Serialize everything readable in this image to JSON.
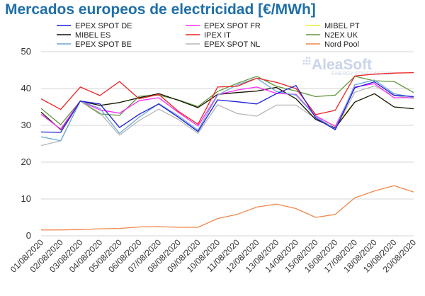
{
  "header": {
    "title": "Mercados europeos de electricidad [€/MWh]"
  },
  "watermark": {
    "brand": "AleaSoft",
    "tagline": "ENERGY FORECASTING",
    "icon": "dot-grid-icon"
  },
  "chart_data": {
    "type": "line",
    "title": "Mercados europeos de electricidad [€/MWh]",
    "xlabel": "",
    "ylabel": "",
    "ylim": [
      0,
      50
    ],
    "yticks": [
      0,
      10,
      20,
      30,
      40,
      50
    ],
    "grid": "horizontal",
    "legend_placement": "top",
    "x": [
      "01/08/2020",
      "02/08/2020",
      "03/08/2020",
      "04/08/2020",
      "05/08/2020",
      "06/08/2020",
      "07/08/2020",
      "08/08/2020",
      "09/08/2020",
      "10/08/2020",
      "11/08/2020",
      "12/08/2020",
      "13/08/2020",
      "14/08/2020",
      "15/08/2020",
      "16/08/2020",
      "17/08/2020",
      "18/08/2020",
      "19/08/2020",
      "20/08/2020"
    ],
    "series": [
      {
        "name": "EPEX SPOT DE",
        "color": "#1f1fd6",
        "values": [
          28.2,
          28.1,
          36.6,
          35.8,
          29.4,
          33.0,
          35.8,
          32.2,
          28.3,
          36.9,
          36.4,
          35.8,
          38.6,
          40.8,
          32.0,
          28.8,
          40.2,
          41.8,
          38.2,
          37.8
        ]
      },
      {
        "name": "MIBEL ES",
        "color": "#111111",
        "values": [
          33.6,
          28.8,
          36.6,
          35.4,
          36.2,
          37.5,
          38.6,
          36.8,
          34.8,
          38.4,
          38.9,
          39.3,
          40.3,
          37.2,
          31.6,
          29.3,
          36.3,
          38.6,
          35.0,
          34.5
        ]
      },
      {
        "name": "EPEX SPOT BE",
        "color": "#6aa6da",
        "values": [
          26.9,
          25.8,
          36.6,
          34.6,
          27.8,
          32.2,
          35.9,
          32.6,
          28.7,
          38.2,
          41.0,
          42.8,
          39.2,
          38.2,
          32.4,
          29.0,
          41.0,
          42.3,
          38.6,
          37.6
        ]
      },
      {
        "name": "EPEX SPOT FR",
        "color": "#ff2bff",
        "values": [
          33.0,
          29.0,
          36.6,
          34.2,
          33.3,
          36.7,
          37.5,
          33.5,
          29.8,
          38.3,
          39.6,
          40.4,
          38.7,
          38.4,
          32.6,
          29.7,
          40.4,
          41.3,
          37.5,
          37.5
        ]
      },
      {
        "name": "IPEX IT",
        "color": "#ea2222",
        "values": [
          37.2,
          34.3,
          40.4,
          38.1,
          41.9,
          37.2,
          38.4,
          33.8,
          30.3,
          40.4,
          40.6,
          42.8,
          41.7,
          40.0,
          32.9,
          34.1,
          43.4,
          43.9,
          44.2,
          44.3
        ]
      },
      {
        "name": "EPEX SPOT NL",
        "color": "#b6b6b6",
        "values": [
          24.5,
          25.8,
          36.7,
          33.4,
          27.3,
          31.3,
          34.4,
          31.6,
          27.8,
          35.6,
          33.2,
          32.5,
          35.5,
          35.5,
          31.8,
          28.8,
          39.0,
          40.7,
          38.1,
          37.3
        ]
      },
      {
        "name": "MIBEL PT",
        "color": "#f0ee2e",
        "values": [
          33.6,
          28.8,
          36.6,
          35.4,
          36.2,
          37.5,
          38.6,
          36.8,
          34.8,
          38.4,
          38.9,
          39.3,
          40.3,
          37.2,
          31.6,
          30.0,
          36.3,
          38.6,
          35.0,
          34.5
        ]
      },
      {
        "name": "N2EX UK",
        "color": "#5f9638",
        "values": [
          34.6,
          30.2,
          36.6,
          33.1,
          32.7,
          37.9,
          38.2,
          36.9,
          35.1,
          39.2,
          41.4,
          43.3,
          40.6,
          39.3,
          37.8,
          38.2,
          43.3,
          42.1,
          41.9,
          38.9
        ]
      },
      {
        "name": "Nord Pool",
        "color": "#f0884a",
        "values": [
          1.6,
          1.6,
          1.7,
          1.9,
          2.0,
          2.4,
          2.5,
          2.3,
          2.3,
          4.7,
          5.8,
          7.8,
          8.6,
          7.4,
          5.0,
          5.8,
          10.3,
          12.2,
          13.6,
          11.9
        ]
      }
    ]
  }
}
